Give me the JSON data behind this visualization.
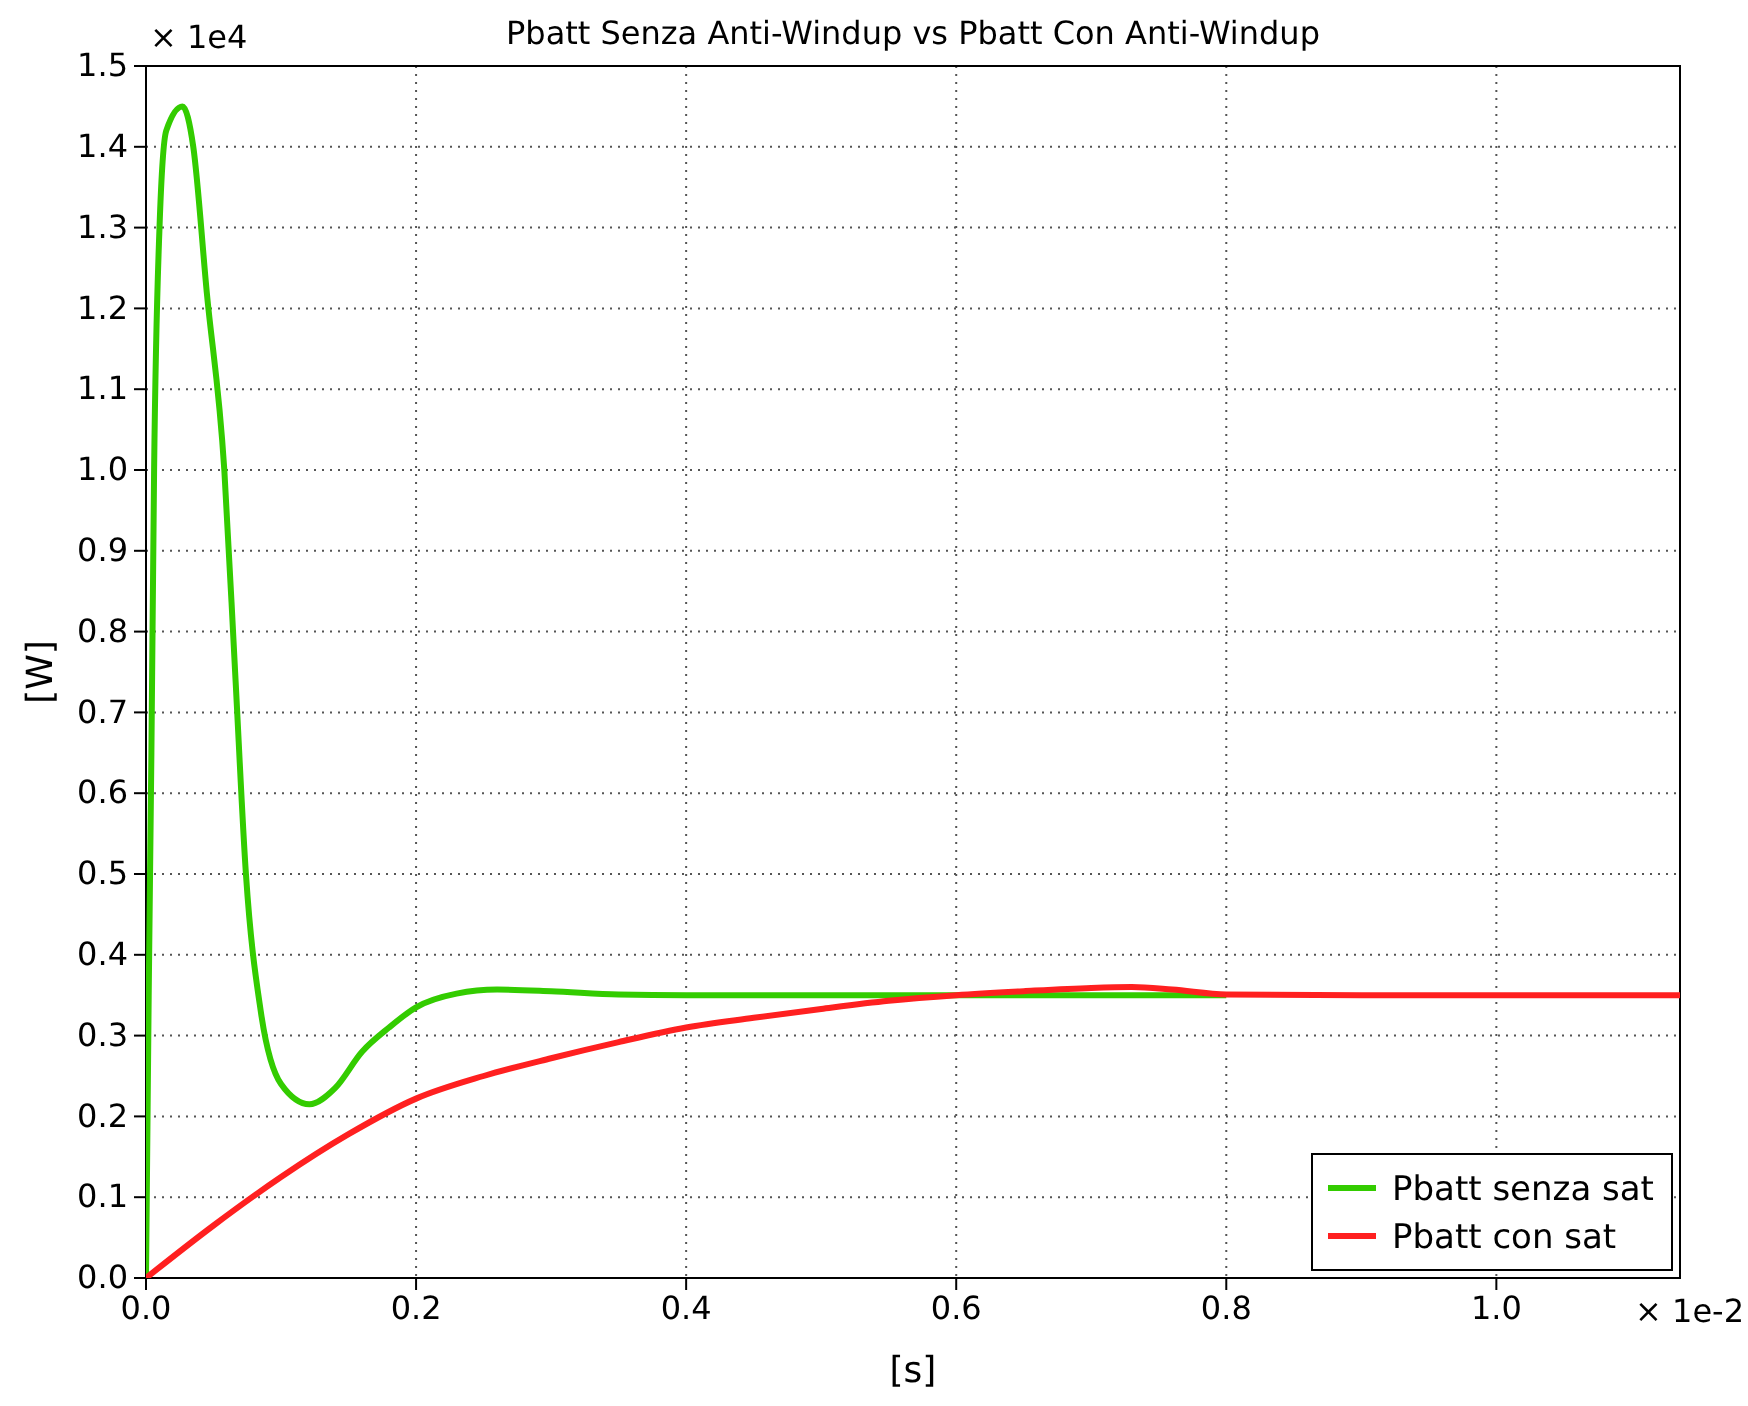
{
  "chart_data": {
    "type": "line",
    "title": "Pbatt Senza Anti-Windup vs Pbatt Con Anti-Windup",
    "xlabel": "[s]",
    "ylabel": "[W]",
    "annotations": [
      "× 1e4",
      "× 1e-2"
    ],
    "xlim": [
      0,
      1.136
    ],
    "ylim": [
      0,
      1.5
    ],
    "xticks": [
      {
        "value": 0,
        "label": "0.0"
      },
      {
        "value": 0.2,
        "label": "0.2"
      },
      {
        "value": 0.4,
        "label": "0.4"
      },
      {
        "value": 0.6,
        "label": "0.6"
      },
      {
        "value": 0.8,
        "label": "0.8"
      },
      {
        "value": 1.0,
        "label": "1.0"
      }
    ],
    "yticks": [
      {
        "value": 0,
        "label": "0.0"
      },
      {
        "value": 0.1,
        "label": "0.1"
      },
      {
        "value": 0.2,
        "label": "0.2"
      },
      {
        "value": 0.3,
        "label": "0.3"
      },
      {
        "value": 0.4,
        "label": "0.4"
      },
      {
        "value": 0.5,
        "label": "0.5"
      },
      {
        "value": 0.6,
        "label": "0.6"
      },
      {
        "value": 0.7,
        "label": "0.7"
      },
      {
        "value": 0.8,
        "label": "0.8"
      },
      {
        "value": 0.9,
        "label": "0.9"
      },
      {
        "value": 1.0,
        "label": "1.0"
      },
      {
        "value": 1.1,
        "label": "1.1"
      },
      {
        "value": 1.2,
        "label": "1.2"
      },
      {
        "value": 1.3,
        "label": "1.3"
      },
      {
        "value": 1.4,
        "label": "1.4"
      },
      {
        "value": 1.5,
        "label": "1.5"
      }
    ],
    "grid": true,
    "legend": "bottom right",
    "line_style": "solid",
    "marker": "none",
    "series": [
      {
        "name": "Pbatt senza sat",
        "color": "#33cc00",
        "x": [
          0,
          0.002,
          0.004,
          0.006,
          0.01,
          0.015,
          0.027,
          0.035,
          0.045,
          0.058,
          0.066,
          0.074,
          0.085,
          0.1,
          0.121,
          0.14,
          0.16,
          0.18,
          0.2,
          0.23,
          0.26,
          0.3,
          0.35,
          0.4,
          0.6,
          0.8
        ],
        "values": [
          0,
          0.35,
          0.65,
          1.0,
          1.3,
          1.42,
          1.45,
          1.4,
          1.22,
          1.0,
          0.75,
          0.5,
          0.33,
          0.24,
          0.215,
          0.235,
          0.28,
          0.31,
          0.335,
          0.352,
          0.357,
          0.355,
          0.351,
          0.35,
          0.35,
          0.35
        ]
      },
      {
        "name": "Pbatt con sat",
        "color": "#ff2020",
        "x": [
          0,
          0.05,
          0.1,
          0.15,
          0.2,
          0.25,
          0.3,
          0.35,
          0.4,
          0.45,
          0.5,
          0.55,
          0.6,
          0.65,
          0.7,
          0.73,
          0.76,
          0.8,
          0.9,
          1.0,
          1.136
        ],
        "values": [
          0,
          0.065,
          0.125,
          0.178,
          0.222,
          0.25,
          0.272,
          0.292,
          0.31,
          0.322,
          0.333,
          0.343,
          0.35,
          0.355,
          0.359,
          0.36,
          0.357,
          0.351,
          0.35,
          0.35,
          0.35
        ]
      }
    ]
  }
}
